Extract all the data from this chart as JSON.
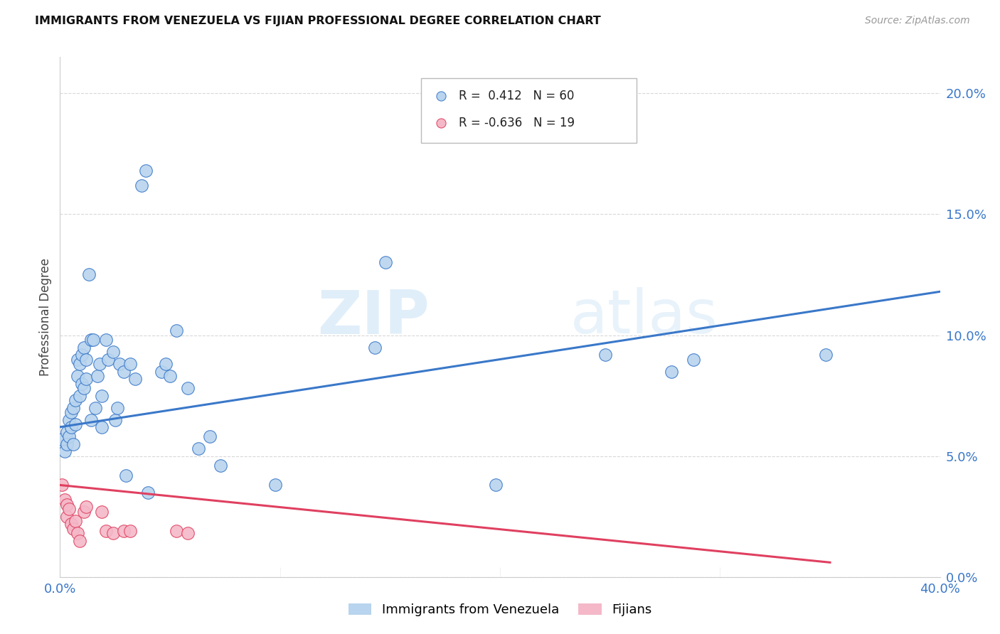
{
  "title": "IMMIGRANTS FROM VENEZUELA VS FIJIAN PROFESSIONAL DEGREE CORRELATION CHART",
  "source": "Source: ZipAtlas.com",
  "ylabel": "Professional Degree",
  "right_yticks": [
    "0.0%",
    "5.0%",
    "10.0%",
    "15.0%",
    "20.0%"
  ],
  "right_ytick_vals": [
    0.0,
    0.05,
    0.1,
    0.15,
    0.2
  ],
  "xlim": [
    0.0,
    0.4
  ],
  "ylim": [
    0.0,
    0.215
  ],
  "blue_color": "#b8d4ee",
  "pink_color": "#f4b8c8",
  "blue_line_color": "#3a78c9",
  "pink_line_color": "#e04060",
  "watermark_zip": "ZIP",
  "watermark_atlas": "atlas",
  "blue_scatter": [
    [
      0.001,
      0.057
    ],
    [
      0.002,
      0.052
    ],
    [
      0.003,
      0.06
    ],
    [
      0.003,
      0.055
    ],
    [
      0.004,
      0.065
    ],
    [
      0.004,
      0.058
    ],
    [
      0.005,
      0.068
    ],
    [
      0.005,
      0.062
    ],
    [
      0.006,
      0.07
    ],
    [
      0.006,
      0.055
    ],
    [
      0.007,
      0.073
    ],
    [
      0.007,
      0.063
    ],
    [
      0.008,
      0.09
    ],
    [
      0.008,
      0.083
    ],
    [
      0.009,
      0.088
    ],
    [
      0.009,
      0.075
    ],
    [
      0.01,
      0.092
    ],
    [
      0.01,
      0.08
    ],
    [
      0.011,
      0.095
    ],
    [
      0.011,
      0.078
    ],
    [
      0.012,
      0.09
    ],
    [
      0.012,
      0.082
    ],
    [
      0.013,
      0.125
    ],
    [
      0.014,
      0.098
    ],
    [
      0.014,
      0.065
    ],
    [
      0.015,
      0.098
    ],
    [
      0.016,
      0.07
    ],
    [
      0.017,
      0.083
    ],
    [
      0.018,
      0.088
    ],
    [
      0.019,
      0.062
    ],
    [
      0.019,
      0.075
    ],
    [
      0.021,
      0.098
    ],
    [
      0.022,
      0.09
    ],
    [
      0.024,
      0.093
    ],
    [
      0.025,
      0.065
    ],
    [
      0.026,
      0.07
    ],
    [
      0.027,
      0.088
    ],
    [
      0.029,
      0.085
    ],
    [
      0.03,
      0.042
    ],
    [
      0.032,
      0.088
    ],
    [
      0.034,
      0.082
    ],
    [
      0.037,
      0.162
    ],
    [
      0.039,
      0.168
    ],
    [
      0.04,
      0.035
    ],
    [
      0.046,
      0.085
    ],
    [
      0.048,
      0.088
    ],
    [
      0.05,
      0.083
    ],
    [
      0.053,
      0.102
    ],
    [
      0.058,
      0.078
    ],
    [
      0.063,
      0.053
    ],
    [
      0.068,
      0.058
    ],
    [
      0.073,
      0.046
    ],
    [
      0.098,
      0.038
    ],
    [
      0.143,
      0.095
    ],
    [
      0.148,
      0.13
    ],
    [
      0.198,
      0.038
    ],
    [
      0.248,
      0.092
    ],
    [
      0.278,
      0.085
    ],
    [
      0.288,
      0.09
    ],
    [
      0.348,
      0.092
    ]
  ],
  "pink_scatter": [
    [
      0.001,
      0.038
    ],
    [
      0.002,
      0.032
    ],
    [
      0.003,
      0.03
    ],
    [
      0.003,
      0.025
    ],
    [
      0.004,
      0.028
    ],
    [
      0.005,
      0.022
    ],
    [
      0.006,
      0.02
    ],
    [
      0.007,
      0.023
    ],
    [
      0.008,
      0.018
    ],
    [
      0.009,
      0.015
    ],
    [
      0.011,
      0.027
    ],
    [
      0.012,
      0.029
    ],
    [
      0.019,
      0.027
    ],
    [
      0.021,
      0.019
    ],
    [
      0.024,
      0.018
    ],
    [
      0.029,
      0.019
    ],
    [
      0.032,
      0.019
    ],
    [
      0.053,
      0.019
    ],
    [
      0.058,
      0.018
    ]
  ],
  "blue_trendline": [
    [
      0.0,
      0.062
    ],
    [
      0.4,
      0.118
    ]
  ],
  "pink_trendline": [
    [
      0.0,
      0.038
    ],
    [
      0.35,
      0.006
    ]
  ]
}
